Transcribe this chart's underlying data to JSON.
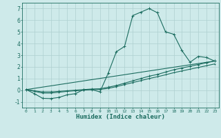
{
  "xlabel": "Humidex (Indice chaleur)",
  "background_color": "#ceeaea",
  "grid_color": "#aed0d0",
  "line_color": "#1a6b5e",
  "xlim": [
    -0.5,
    23.5
  ],
  "ylim": [
    -1.5,
    7.5
  ],
  "xticks": [
    0,
    1,
    2,
    3,
    4,
    5,
    6,
    7,
    8,
    9,
    10,
    11,
    12,
    13,
    14,
    15,
    16,
    17,
    18,
    19,
    20,
    21,
    22,
    23
  ],
  "yticks": [
    -1,
    0,
    1,
    2,
    3,
    4,
    5,
    6,
    7
  ],
  "series1_x": [
    0,
    1,
    2,
    3,
    4,
    5,
    6,
    7,
    8,
    9,
    10,
    11,
    12,
    13,
    14,
    15,
    16,
    17,
    18,
    19,
    20,
    21,
    22,
    23
  ],
  "series1_y": [
    0.05,
    -0.3,
    -0.7,
    -0.72,
    -0.62,
    -0.4,
    -0.3,
    0.05,
    0.05,
    -0.15,
    1.45,
    3.3,
    3.75,
    6.4,
    6.7,
    7.0,
    6.65,
    5.0,
    4.8,
    3.4,
    2.4,
    2.9,
    2.8,
    2.5
  ],
  "series2_x": [
    0,
    1,
    2,
    3,
    4,
    5,
    6,
    7,
    8,
    9,
    10,
    11,
    12,
    13,
    14,
    15,
    16,
    17,
    18,
    19,
    20,
    21,
    22,
    23
  ],
  "series2_y": [
    0.05,
    -0.05,
    -0.15,
    -0.15,
    -0.1,
    -0.05,
    0.0,
    0.05,
    0.1,
    0.12,
    0.25,
    0.4,
    0.6,
    0.8,
    1.0,
    1.2,
    1.35,
    1.55,
    1.75,
    1.9,
    2.05,
    2.2,
    2.35,
    2.5
  ],
  "series3_x": [
    0,
    1,
    2,
    3,
    4,
    5,
    6,
    7,
    8,
    9,
    10,
    11,
    12,
    13,
    14,
    15,
    16,
    17,
    18,
    19,
    20,
    21,
    22,
    23
  ],
  "series3_y": [
    0.05,
    -0.1,
    -0.25,
    -0.25,
    -0.18,
    -0.1,
    -0.05,
    0.0,
    0.05,
    0.06,
    0.15,
    0.3,
    0.48,
    0.65,
    0.82,
    1.0,
    1.15,
    1.32,
    1.5,
    1.65,
    1.8,
    1.95,
    2.1,
    2.25
  ],
  "series4_x": [
    0,
    23
  ],
  "series4_y": [
    0.05,
    2.5
  ]
}
